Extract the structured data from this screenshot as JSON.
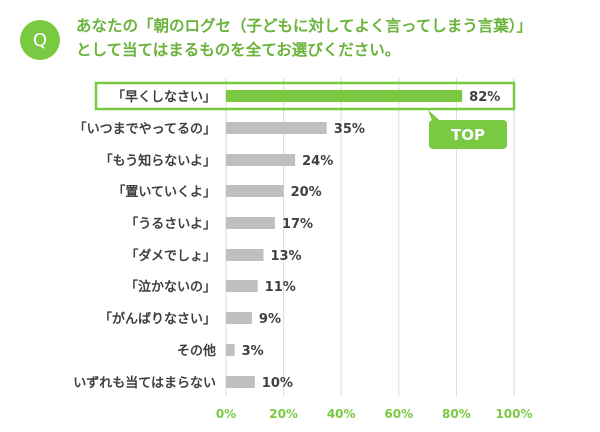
{
  "question": {
    "badge": "Q",
    "line1": "あなたの「朝のログセ（子どもに対してよく言ってしまう言葉）」",
    "line2": "として当てはまるものを全てお選びください。"
  },
  "colors": {
    "accent": "#7ac943",
    "bar": "#bfbfbf",
    "grid": "#cfe6bd",
    "text": "#404040"
  },
  "chart_data": {
    "type": "bar",
    "orientation": "horizontal",
    "title": "あなたの「朝のログセ（子どもに対してよく言ってしまう言葉）」として当てはまるものを全てお選びください。",
    "categories": [
      "「早くしなさい」",
      "「いつまでやってるの」",
      "「もう知らないよ」",
      "「置いていくよ」",
      "「うるさいよ」",
      "「ダメでしょ」",
      "「泣かないの」",
      "「がんばりなさい」",
      "その他",
      "いずれも当てはまらない"
    ],
    "values": [
      82,
      35,
      24,
      20,
      17,
      13,
      11,
      9,
      3,
      10
    ],
    "value_labels": [
      "82%",
      "35%",
      "24%",
      "20%",
      "17%",
      "13%",
      "11%",
      "9%",
      "3%",
      "10%"
    ],
    "xlim": [
      0,
      100
    ],
    "xticks": [
      "0%",
      "20%",
      "40%",
      "60%",
      "80%",
      "100%"
    ],
    "grid": true,
    "highlight": {
      "category": "「早くしなさい」",
      "badge": "TOP"
    }
  }
}
